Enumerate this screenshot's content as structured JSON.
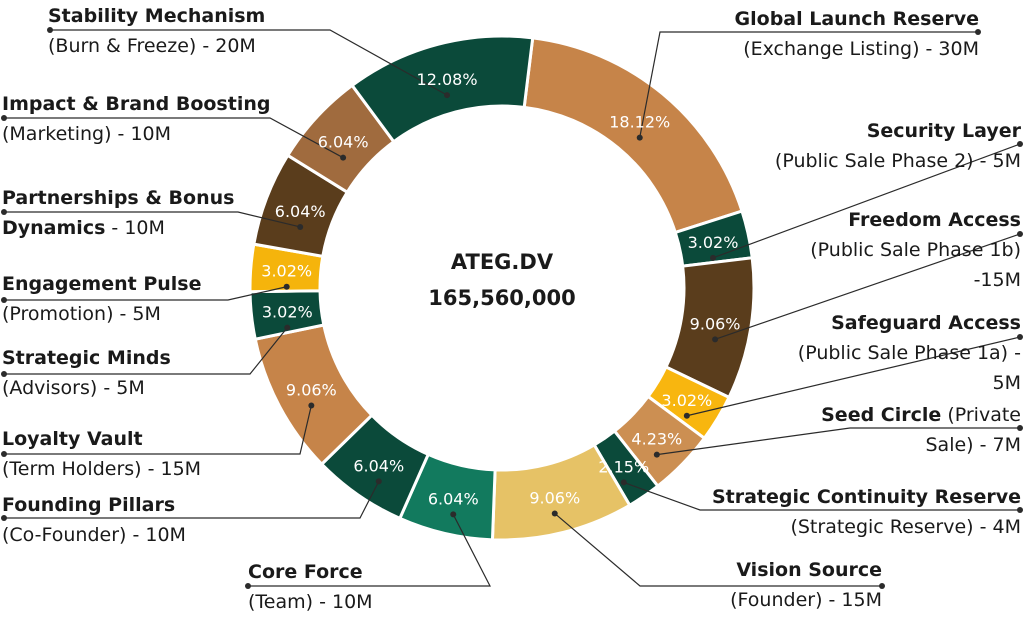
{
  "center": {
    "name": "ATEG.DV",
    "total": "165,560,000"
  },
  "colors": {
    "dark_green": "#0b4a3a",
    "teal_green": "#127a5e",
    "dark_brown": "#5a3d1c",
    "medium_brown": "#a06b3e",
    "copper": "#c68449",
    "tan": "#cc8f52",
    "gold": "#f5b40c",
    "yellow_sand": "#e6c266",
    "bright_gold": "#f8b60f",
    "line": "#2b2b2b"
  },
  "chart_data": {
    "type": "pie",
    "donut": true,
    "total": 165560000,
    "slices": [
      {
        "id": "global-launch-reserve",
        "name": "Global Launch Reserve",
        "detail": "(Exchange Listing) - 30M",
        "value": 30,
        "percent": "18.12%",
        "color": "#c68449",
        "text_color": "#ffffff"
      },
      {
        "id": "security-layer",
        "name": "Security Layer",
        "detail": "(Public Sale Phase 2) - 5M",
        "value": 5,
        "percent": "3.02%",
        "color": "#0b4a3a",
        "text_color": "#ffffff"
      },
      {
        "id": "freedom-access",
        "name": "Freedom Access",
        "detail": "(Public Sale Phase 1b) -15M",
        "value": 15,
        "percent": "9.06%",
        "color": "#5a3d1c",
        "text_color": "#ffffff"
      },
      {
        "id": "safeguard-access",
        "name": "Safeguard Access",
        "detail": "(Public Sale Phase 1a) - 5M",
        "value": 5,
        "percent": "3.02%",
        "color": "#f8b60f",
        "text_color": "#ffffff"
      },
      {
        "id": "seed-circle",
        "name": "Seed Circle",
        "detail": "(Private Sale) - 7M",
        "value": 7,
        "percent": "4.23%",
        "color": "#cc8f52",
        "text_color": "#ffffff"
      },
      {
        "id": "strategic-continuity-reserve",
        "name": "Strategic Continuity Reserve",
        "detail": "(Strategic Reserve) - 4M",
        "value": 3.56,
        "percent": "2.15%",
        "color": "#0b4a3a",
        "text_color": "#ffffff"
      },
      {
        "id": "vision-source",
        "name": "Vision Source",
        "detail": "(Founder) - 15M",
        "value": 15,
        "percent": "9.06%",
        "color": "#e6c266",
        "text_color": "#ffffff"
      },
      {
        "id": "core-force",
        "name": "Core Force",
        "detail": "(Team) - 10M",
        "value": 10,
        "percent": "6.04%",
        "color": "#127a5e",
        "text_color": "#ffffff"
      },
      {
        "id": "founding-pillars",
        "name": "Founding Pillars",
        "detail": "(Co-Founder) - 10M",
        "value": 10,
        "percent": "6.04%",
        "color": "#0b4a3a",
        "text_color": "#ffffff"
      },
      {
        "id": "loyalty-vault",
        "name": "Loyalty Vault",
        "detail": "(Term Holders) - 15M",
        "value": 15,
        "percent": "9.06%",
        "color": "#c68449",
        "text_color": "#ffffff"
      },
      {
        "id": "strategic-minds",
        "name": "Strategic Minds",
        "detail": "(Advisors) - 5M",
        "value": 5,
        "percent": "3.02%",
        "color": "#0b4a3a",
        "text_color": "#ffffff"
      },
      {
        "id": "engagement-pulse",
        "name": "Engagement Pulse",
        "detail": "(Promotion) - 5M",
        "value": 5,
        "percent": "3.02%",
        "color": "#f5b40c",
        "text_color": "#ffffff"
      },
      {
        "id": "partnerships-bonus",
        "name": "Partnerships & Bonus Dynamics",
        "detail": "- 10M",
        "value": 10,
        "percent": "6.04%",
        "color": "#5a3d1c",
        "text_color": "#ffffff"
      },
      {
        "id": "impact-brand",
        "name": "Impact & Brand Boosting",
        "detail": "(Marketing) - 10M",
        "value": 10,
        "percent": "6.04%",
        "color": "#a06b3e",
        "text_color": "#ffffff"
      },
      {
        "id": "stability-mechanism",
        "name": "Stability Mechanism",
        "detail": "(Burn & Freeze) - 20M",
        "value": 20,
        "percent": "12.08%",
        "color": "#0b4a3a",
        "text_color": "#ffffff"
      }
    ]
  },
  "labels": {
    "global_launch_reserve": {
      "title": "Global Launch Reserve",
      "sub": "(Exchange Listing) - 30M"
    },
    "security_layer": {
      "title": "Security Layer",
      "sub": "(Public Sale Phase 2) - 5M"
    },
    "freedom_access": {
      "title": "Freedom Access",
      "sub1": "(Public Sale Phase 1b)",
      "sub2": "-15M"
    },
    "safeguard_access": {
      "title": "Safeguard Access",
      "sub1": "(Public Sale Phase 1a) -",
      "sub2": "5M"
    },
    "seed_circle": {
      "title": "Seed Circle",
      "title_tail": " (Private",
      "sub": "Sale)  - 7M"
    },
    "strategic_continuity_reserve": {
      "title": "Strategic Continuity Reserve",
      "sub": "(Strategic Reserve) - 4M"
    },
    "vision_source": {
      "title": "Vision Source",
      "sub": "(Founder)  - 15M"
    },
    "core_force": {
      "title": "Core Force",
      "sub": "(Team) - 10M"
    },
    "founding_pillars": {
      "title": "Founding Pillars",
      "sub": "(Co-Founder) - 10M"
    },
    "loyalty_vault": {
      "title": "Loyalty Vault",
      "sub": "(Term Holders) - 15M"
    },
    "strategic_minds": {
      "title": "Strategic Minds",
      "sub": "(Advisors) - 5M"
    },
    "engagement_pulse": {
      "title": "Engagement Pulse",
      "sub": "(Promotion) - 5M"
    },
    "partnerships_bonus": {
      "title1": "Partnerships & Bonus",
      "title2": "Dynamics",
      "sub": " - 10M"
    },
    "impact_brand": {
      "title": "Impact & Brand Boosting",
      "sub": "(Marketing) - 10M"
    },
    "stability_mechanism": {
      "title": "Stability Mechanism",
      "sub": "(Burn & Freeze) - 20M"
    }
  }
}
